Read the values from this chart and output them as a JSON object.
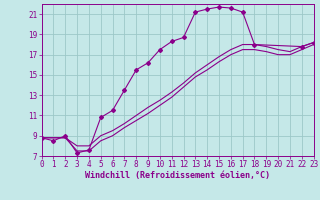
{
  "background_color": "#c5e8e8",
  "grid_color": "#9dc8c8",
  "line_color": "#8b008b",
  "xlim": [
    0,
    23
  ],
  "ylim": [
    7,
    22
  ],
  "xticks": [
    0,
    1,
    2,
    3,
    4,
    5,
    6,
    7,
    8,
    9,
    10,
    11,
    12,
    13,
    14,
    15,
    16,
    17,
    18,
    19,
    20,
    21,
    22,
    23
  ],
  "yticks": [
    7,
    9,
    11,
    13,
    15,
    17,
    19,
    21
  ],
  "line_wavy_x": [
    0,
    1,
    2,
    3,
    4,
    5,
    6,
    7,
    8,
    9,
    10,
    11,
    12,
    13,
    14,
    15,
    16,
    17,
    18,
    22,
    23
  ],
  "line_wavy_y": [
    8.8,
    8.5,
    9.0,
    7.3,
    7.6,
    10.8,
    11.5,
    13.5,
    15.5,
    16.2,
    17.5,
    18.3,
    18.7,
    21.2,
    21.5,
    21.7,
    21.6,
    21.2,
    18.0,
    17.8,
    18.2
  ],
  "line_upper_x": [
    0,
    1,
    2,
    3,
    4,
    5,
    6,
    7,
    8,
    9,
    10,
    11,
    12,
    13,
    14,
    15,
    16,
    17,
    18,
    19,
    20,
    21,
    22,
    23
  ],
  "line_upper_y": [
    8.8,
    8.8,
    8.8,
    8.0,
    8.0,
    9.0,
    9.5,
    10.2,
    11.0,
    11.8,
    12.5,
    13.3,
    14.2,
    15.2,
    16.0,
    16.8,
    17.5,
    18.0,
    18.0,
    17.8,
    17.5,
    17.3,
    17.8,
    18.2
  ],
  "line_lower_x": [
    0,
    1,
    2,
    3,
    4,
    5,
    6,
    7,
    8,
    9,
    10,
    11,
    12,
    13,
    14,
    15,
    16,
    17,
    18,
    19,
    20,
    21,
    22,
    23
  ],
  "line_lower_y": [
    8.8,
    8.8,
    8.8,
    7.5,
    7.5,
    8.5,
    9.0,
    9.8,
    10.5,
    11.2,
    12.0,
    12.8,
    13.8,
    14.8,
    15.5,
    16.3,
    17.0,
    17.5,
    17.5,
    17.3,
    17.0,
    17.0,
    17.5,
    18.0
  ],
  "xlabel": "Windchill (Refroidissement éolien,°C)",
  "marker": "D",
  "marker_size": 2.0,
  "linewidth": 0.8,
  "font_color": "#8b008b",
  "font_size_tick": 5.5,
  "font_size_label": 6.0
}
